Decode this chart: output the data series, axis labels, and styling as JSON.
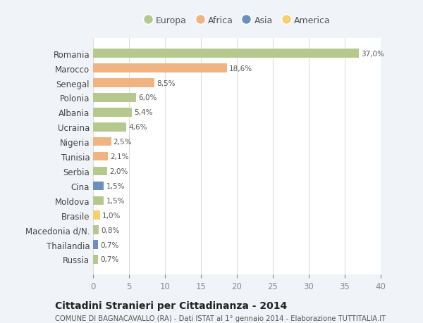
{
  "countries": [
    "Romania",
    "Marocco",
    "Senegal",
    "Polonia",
    "Albania",
    "Ucraina",
    "Nigeria",
    "Tunisia",
    "Serbia",
    "Cina",
    "Moldova",
    "Brasile",
    "Macedonia d/N.",
    "Thailandia",
    "Russia"
  ],
  "values": [
    37.0,
    18.6,
    8.5,
    6.0,
    5.4,
    4.6,
    2.5,
    2.1,
    2.0,
    1.5,
    1.5,
    1.0,
    0.8,
    0.7,
    0.7
  ],
  "labels": [
    "37,0%",
    "18,6%",
    "8,5%",
    "6,0%",
    "5,4%",
    "4,6%",
    "2,5%",
    "2,1%",
    "2,0%",
    "1,5%",
    "1,5%",
    "1,0%",
    "0,8%",
    "0,7%",
    "0,7%"
  ],
  "colors": [
    "#b5c98e",
    "#f0b482",
    "#f0b482",
    "#b5c98e",
    "#b5c98e",
    "#b5c98e",
    "#f0b482",
    "#f0b482",
    "#b5c98e",
    "#6b8fbf",
    "#b5c98e",
    "#f5d06e",
    "#b5c98e",
    "#6b8fbf",
    "#b5c98e"
  ],
  "legend_labels": [
    "Europa",
    "Africa",
    "Asia",
    "America"
  ],
  "legend_colors": [
    "#b5c98e",
    "#f0b482",
    "#6b8fbf",
    "#f5d06e"
  ],
  "xlim": [
    0,
    40
  ],
  "xticks": [
    0,
    5,
    10,
    15,
    20,
    25,
    30,
    35,
    40
  ],
  "title": "Cittadini Stranieri per Cittadinanza - 2014",
  "subtitle": "COMUNE DI BAGNACAVALLO (RA) - Dati ISTAT al 1° gennaio 2014 - Elaborazione TUTTITALIA.IT",
  "background_color": "#f0f4f8",
  "plot_bg_color": "#ffffff",
  "bar_height": 0.6,
  "figsize": [
    6.0,
    4.6
  ],
  "dpi": 100
}
